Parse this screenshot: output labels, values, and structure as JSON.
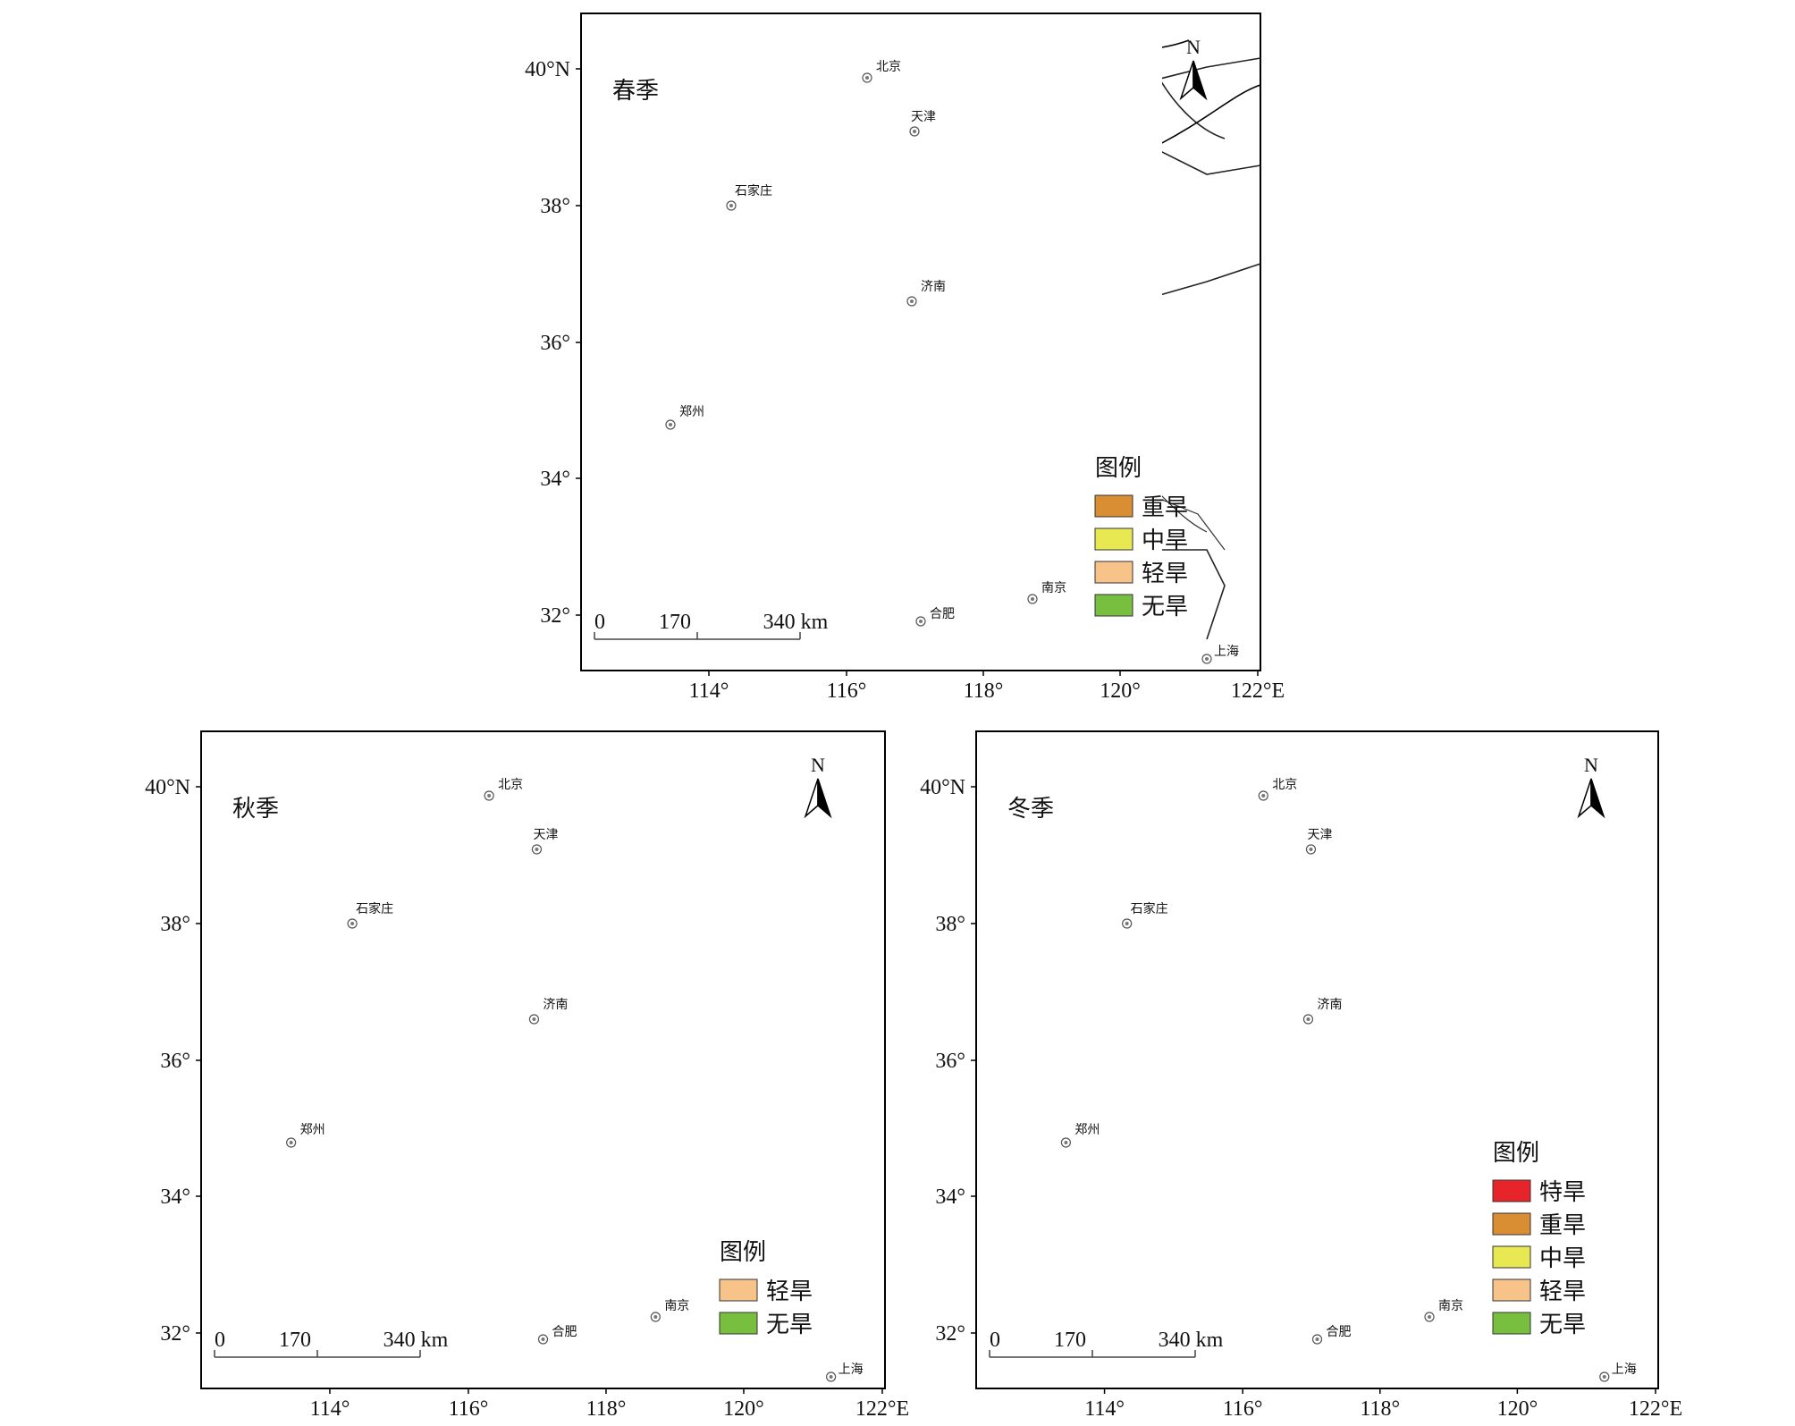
{
  "colors": {
    "特旱": "#e8242b",
    "重旱": "#d98e33",
    "中旱": "#e8e853",
    "轻旱": "#f7c388",
    "无旱": "#78bf3f"
  },
  "lat_labels": [
    "40°N",
    "38°",
    "36°",
    "34°",
    "32°"
  ],
  "lon_labels": [
    "114°",
    "116°",
    "118°",
    "120°",
    "122°E"
  ],
  "scale_bar": {
    "zero": "0",
    "mid": "170",
    "end": "340 km"
  },
  "north_arrow": {
    "label": "N",
    "icon": "north-arrow-icon"
  },
  "cities": {
    "beijing": "北京",
    "tianjin": "天津",
    "shijiazhuang": "石家庄",
    "jinan": "济南",
    "zhengzhou": "郑州",
    "hefei": "合肥",
    "nanjing": "南京",
    "shanghai": "上海"
  },
  "legend_title": "图例",
  "maps": {
    "spring": {
      "season": "春季",
      "legend": [
        {
          "label": "重旱",
          "level": "重旱"
        },
        {
          "label": "中旱",
          "level": "中旱"
        },
        {
          "label": "轻旱",
          "level": "轻旱"
        },
        {
          "label": "无旱",
          "level": "无旱"
        }
      ]
    },
    "autumn": {
      "season": "秋季",
      "legend": [
        {
          "label": "轻旱",
          "level": "轻旱"
        },
        {
          "label": "无旱",
          "level": "无旱"
        }
      ]
    },
    "winter": {
      "season": "冬季",
      "legend": [
        {
          "label": "特旱",
          "level": "特旱"
        },
        {
          "label": "重旱",
          "level": "重旱"
        },
        {
          "label": "中旱",
          "level": "中旱"
        },
        {
          "label": "轻旱",
          "level": "轻旱"
        },
        {
          "label": "无旱",
          "level": "无旱"
        }
      ]
    }
  }
}
